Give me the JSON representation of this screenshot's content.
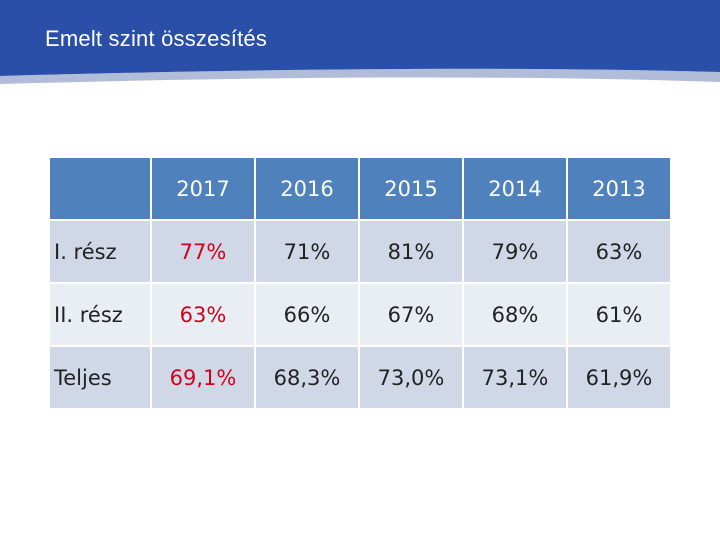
{
  "slide": {
    "title": "Emelt szint összesítés"
  },
  "colors": {
    "header_band": "#2a4fa8",
    "header_band_dark": "#203f8f",
    "table_header": "#4f81bd",
    "row_dark": "#d0d8e8",
    "row_light": "#e9edf4",
    "highlight_text": "#d0021b"
  },
  "table": {
    "corner": "",
    "columns": [
      "2017",
      "2016",
      "2015",
      "2014",
      "2013"
    ],
    "rows": [
      {
        "label": "I. rész",
        "values": [
          "77%",
          "71%",
          "81%",
          "79%",
          "63%"
        ]
      },
      {
        "label": "II. rész",
        "values": [
          "63%",
          "66%",
          "67%",
          "68%",
          "61%"
        ]
      },
      {
        "label": "Teljes",
        "values": [
          "69,1%",
          "68,3%",
          "73,0%",
          "73,1%",
          "61,9%"
        ]
      }
    ]
  }
}
